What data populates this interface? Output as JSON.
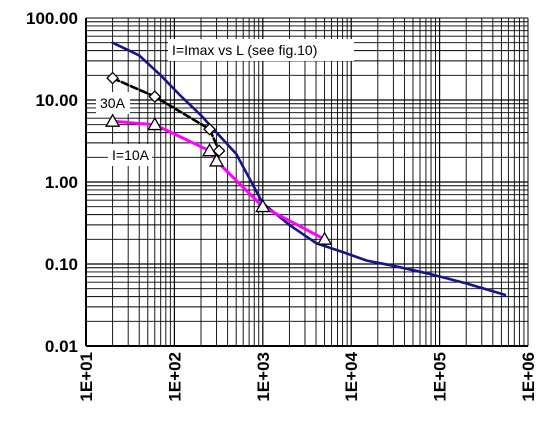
{
  "chart_data": {
    "type": "line",
    "x_scale": "log",
    "y_scale": "log",
    "xlim": [
      10,
      1000000
    ],
    "ylim": [
      0.01,
      100
    ],
    "grid": true,
    "x_tick_labels": [
      "1E+01",
      "1E+02",
      "1E+03",
      "1E+04",
      "1E+05",
      "1E+06"
    ],
    "y_tick_labels": [
      "0.01",
      "0.10",
      "1.00",
      "10.00",
      "100.00"
    ],
    "annotations": [
      "I=Imax vs L (see fig.10)",
      "30A",
      "I=10A"
    ],
    "series": [
      {
        "name": "I=Imax vs L (see fig.10)",
        "color": "#14148c",
        "marker": "none",
        "x": [
          20,
          40,
          70,
          120,
          200,
          300,
          500,
          1000,
          2000,
          4000,
          8000,
          15000,
          30000,
          80000,
          200000,
          550000
        ],
        "y": [
          50,
          35,
          20,
          11,
          6.5,
          4,
          2.2,
          0.55,
          0.3,
          0.18,
          0.14,
          0.11,
          0.095,
          0.075,
          0.058,
          0.042
        ]
      },
      {
        "name": "30A",
        "color": "#000000",
        "marker": "diamond",
        "x": [
          20,
          60,
          250,
          320
        ],
        "y": [
          18.5,
          11,
          4.4,
          2.4
        ]
      },
      {
        "name": "I=10A",
        "color": "#ff00ff",
        "marker": "triangle",
        "x": [
          20,
          60,
          250,
          300,
          1000,
          5000
        ],
        "y": [
          5.5,
          5,
          2.4,
          1.8,
          0.5,
          0.2
        ]
      }
    ]
  }
}
